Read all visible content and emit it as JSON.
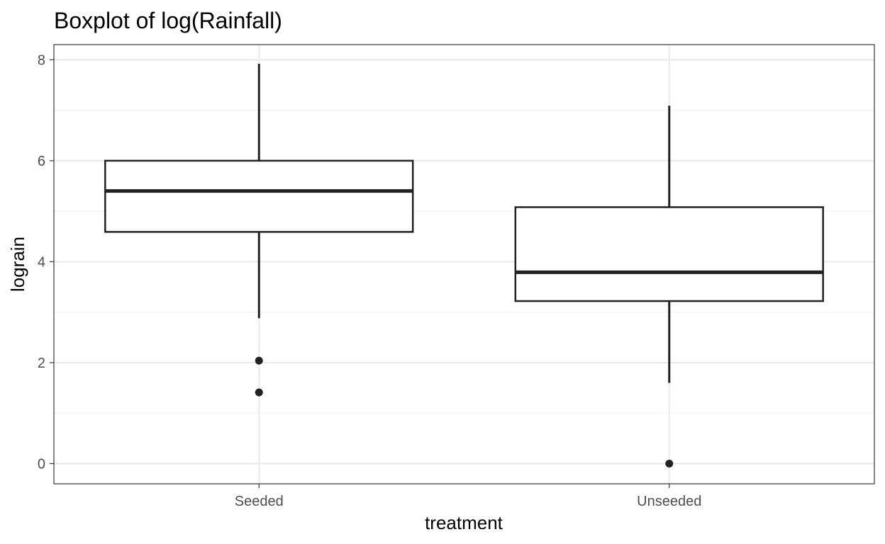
{
  "chart_data": {
    "type": "boxplot",
    "title": "Boxplot of log(Rainfall)",
    "xlabel": "treatment",
    "ylabel": "lograin",
    "categories": [
      "Seeded",
      "Unseeded"
    ],
    "ylim": [
      -0.4,
      8.3
    ],
    "yticks": [
      0,
      2,
      4,
      6,
      8
    ],
    "grid": true,
    "boxes": [
      {
        "category": "Seeded",
        "whisker_low": 2.88,
        "q1": 4.59,
        "median": 5.4,
        "q3": 6.0,
        "whisker_high": 7.92,
        "outliers": [
          2.04,
          1.41
        ]
      },
      {
        "category": "Unseeded",
        "whisker_low": 1.6,
        "q1": 3.22,
        "median": 3.79,
        "q3": 5.08,
        "whisker_high": 7.09,
        "outliers": [
          0.0
        ]
      }
    ],
    "colors": {
      "box_stroke": "#222222",
      "grid_major": "#ebebeb",
      "grid_minor": "#f2f2f2",
      "panel_border": "#333333",
      "tick_text": "#4d4d4d"
    }
  }
}
